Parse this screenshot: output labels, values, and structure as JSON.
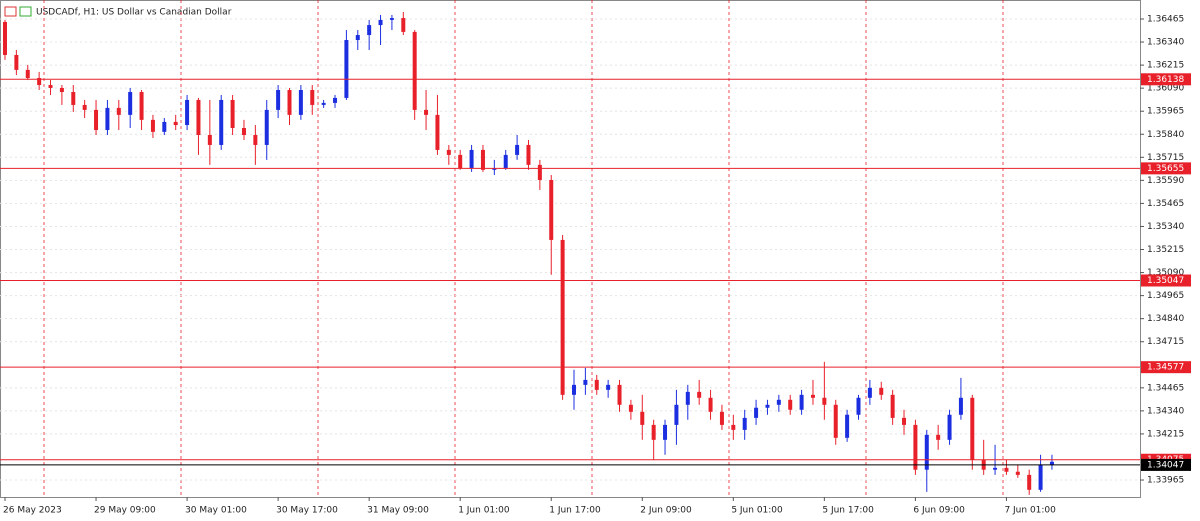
{
  "chart_data": {
    "type": "candlestick",
    "title": "USDCADf, H1:  US Dollar vs Canadian Dollar",
    "categories": [
      "26 May 2023",
      null,
      null,
      null,
      null,
      null,
      null,
      null,
      "29 May 09:00",
      null,
      null,
      null,
      null,
      null,
      null,
      null,
      "30 May 01:00",
      null,
      null,
      null,
      null,
      null,
      null,
      null,
      "30 May 17:00",
      null,
      null,
      null,
      null,
      null,
      null,
      null,
      "31 May 09:00",
      null,
      null,
      null,
      null,
      null,
      null,
      null,
      "1 Jun 01:00",
      null,
      null,
      null,
      null,
      null,
      null,
      null,
      "1 Jun 17:00",
      null,
      null,
      null,
      null,
      null,
      null,
      null,
      "2 Jun 09:00",
      null,
      null,
      null,
      null,
      null,
      null,
      null,
      "5 Jun 01:00",
      null,
      null,
      null,
      null,
      null,
      null,
      null,
      "5 Jun 17:00",
      null,
      null,
      null,
      null,
      null,
      null,
      null,
      "6 Jun 09:00",
      null,
      null,
      null,
      null,
      null,
      null,
      null,
      "7 Jun 01:00",
      null,
      null,
      null,
      null
    ],
    "open": [
      1.36449,
      1.3627,
      1.36189,
      1.36145,
      1.36107,
      1.36091,
      1.36069,
      1.35999,
      1.35972,
      1.35863,
      1.35983,
      1.35945,
      1.36069,
      1.35918,
      1.35853,
      1.35907,
      1.3589,
      1.36026,
      1.35836,
      1.35782,
      1.36026,
      1.35874,
      1.35836,
      1.35782,
      1.35972,
      1.3608,
      1.35945,
      1.3608,
      1.35999,
      1.3601,
      1.36037,
      1.36351,
      1.36378,
      1.36432,
      1.3646,
      1.3647,
      1.36395,
      1.35972,
      1.35945,
      1.35755,
      1.35728,
      1.35657,
      1.35755,
      1.35647,
      1.35657,
      1.35728,
      1.35782,
      1.35674,
      1.35592,
      1.35267,
      1.34427,
      1.34481,
      1.34508,
      1.34454,
      1.34481,
      1.34373,
      1.34335,
      1.34264,
      1.34183,
      1.34264,
      1.34373,
      1.34443,
      1.34411,
      1.34335,
      1.34264,
      1.34237,
      1.34302,
      1.34357,
      1.34373,
      1.344,
      1.34346,
      1.34427,
      1.34411,
      1.34373,
      1.34194,
      1.34319,
      1.34411,
      1.34465,
      1.34427,
      1.34302,
      1.34264,
      1.34021,
      1.3421,
      1.34183,
      1.34319,
      1.34411,
      1.34075,
      1.34021,
      1.34031,
      1.3401,
      1.33993,
      1.33912,
      1.34048
    ],
    "high": [
      1.3646,
      1.36297,
      1.36216,
      1.36178,
      1.36134,
      1.36107,
      1.36107,
      1.36026,
      1.36026,
      1.36026,
      1.36026,
      1.36091,
      1.3608,
      1.35945,
      1.35928,
      1.35945,
      1.36053,
      1.36037,
      1.36026,
      1.36053,
      1.36053,
      1.35918,
      1.3589,
      1.36026,
      1.36107,
      1.36091,
      1.36107,
      1.36107,
      1.36026,
      1.36053,
      1.36405,
      1.36405,
      1.3646,
      1.36487,
      1.36487,
      1.36503,
      1.36405,
      1.3608,
      1.36053,
      1.35782,
      1.35755,
      1.35782,
      1.35782,
      1.35701,
      1.35755,
      1.35836,
      1.35809,
      1.35701,
      1.35619,
      1.35294,
      1.34563,
      1.34573,
      1.34535,
      1.34508,
      1.34508,
      1.344,
      1.34427,
      1.34292,
      1.34292,
      1.34454,
      1.34481,
      1.34508,
      1.34454,
      1.34373,
      1.34319,
      1.34346,
      1.344,
      1.344,
      1.34427,
      1.34427,
      1.34454,
      1.34508,
      1.34606,
      1.344,
      1.34346,
      1.34427,
      1.34508,
      1.34498,
      1.34454,
      1.34346,
      1.34292,
      1.34237,
      1.34264,
      1.34346,
      1.34519,
      1.34427,
      1.34183,
      1.34156,
      1.34075,
      1.34048,
      1.34021,
      1.34102,
      1.34102
    ],
    "low": [
      1.36243,
      1.36161,
      1.36134,
      1.3608,
      1.36053,
      1.35999,
      1.35961,
      1.35928,
      1.35836,
      1.35836,
      1.35863,
      1.35874,
      1.35863,
      1.3582,
      1.35836,
      1.35863,
      1.35863,
      1.35728,
      1.35674,
      1.35755,
      1.35836,
      1.35809,
      1.35674,
      1.35701,
      1.35928,
      1.3589,
      1.35918,
      1.35945,
      1.35983,
      1.35983,
      1.36026,
      1.36297,
      1.36297,
      1.36324,
      1.36405,
      1.36378,
      1.35918,
      1.35863,
      1.35728,
      1.35674,
      1.35647,
      1.35636,
      1.35636,
      1.35619,
      1.35647,
      1.35701,
      1.35647,
      1.35538,
      1.35078,
      1.344,
      1.34346,
      1.34427,
      1.34427,
      1.34411,
      1.34335,
      1.34292,
      1.34183,
      1.34075,
      1.34102,
      1.34156,
      1.34292,
      1.34373,
      1.34292,
      1.34237,
      1.34183,
      1.34183,
      1.34264,
      1.34319,
      1.34335,
      1.34319,
      1.34319,
      1.34373,
      1.34292,
      1.34156,
      1.34172,
      1.34292,
      1.34373,
      1.344,
      1.34264,
      1.3421,
      1.33993,
      1.33901,
      1.34129,
      1.34156,
      1.34292,
      1.34021,
      1.33993,
      1.33993,
      1.33993,
      1.33977,
      1.33885,
      1.33901,
      1.34021
    ],
    "close": [
      1.3627,
      1.36189,
      1.36145,
      1.36107,
      1.36091,
      1.36069,
      1.35999,
      1.35972,
      1.35863,
      1.35983,
      1.35945,
      1.36069,
      1.35918,
      1.35853,
      1.35907,
      1.3589,
      1.36026,
      1.35836,
      1.35782,
      1.36026,
      1.35874,
      1.35836,
      1.35782,
      1.35972,
      1.3608,
      1.35945,
      1.3608,
      1.35999,
      1.3601,
      1.36037,
      1.36351,
      1.36378,
      1.36432,
      1.3646,
      1.3647,
      1.36395,
      1.35972,
      1.35945,
      1.35755,
      1.35728,
      1.35657,
      1.35755,
      1.35647,
      1.35657,
      1.35728,
      1.35782,
      1.35674,
      1.35592,
      1.35267,
      1.34427,
      1.34481,
      1.34508,
      1.34454,
      1.34481,
      1.34373,
      1.34335,
      1.34264,
      1.34183,
      1.34264,
      1.34373,
      1.34443,
      1.34411,
      1.34335,
      1.34264,
      1.34237,
      1.34302,
      1.34357,
      1.34373,
      1.344,
      1.34346,
      1.34427,
      1.34411,
      1.34373,
      1.34194,
      1.34319,
      1.34411,
      1.34465,
      1.34427,
      1.34302,
      1.34264,
      1.34021,
      1.3421,
      1.34183,
      1.34319,
      1.34411,
      1.34075,
      1.34021,
      1.34031,
      1.3401,
      1.33993,
      1.33912,
      1.34048,
      1.34064
    ],
    "up_color": "#1c2fe0",
    "down_color": "#e8202a",
    "ylim": [
      1.33873,
      1.36568
    ],
    "yticks": [
      1.36465,
      {
        "value": 1.3634,
        "label": "1.36340"
      },
      1.36215,
      {
        "value": 1.3609,
        "label": "1.36090"
      },
      1.35965,
      {
        "value": 1.3584,
        "label": "1.35840"
      },
      1.35715,
      {
        "value": 1.3559,
        "label": "1.35590"
      },
      1.35465,
      {
        "value": 1.3534,
        "label": "1.35340"
      },
      1.35215,
      {
        "value": 1.3509,
        "label": "1.35090"
      },
      1.34965,
      {
        "value": 1.3484,
        "label": "1.34840"
      },
      1.34715,
      1.34465,
      {
        "value": 1.3434,
        "label": "1.34340"
      },
      1.34215,
      1.33965
    ],
    "levels": [
      1.36138,
      1.35655,
      1.35047,
      1.34577,
      1.34075
    ],
    "level_color": "#e8202a",
    "bid": 1.34047,
    "bid_color": "#000000",
    "grid": true
  }
}
